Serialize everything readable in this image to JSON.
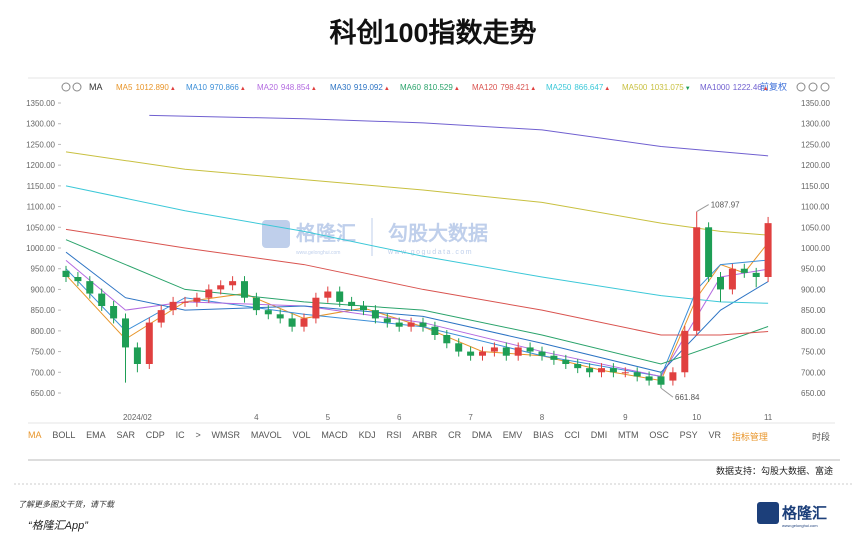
{
  "title": "科创100指数走势",
  "toolbar": {
    "mode": "MA",
    "adjust": "前复权"
  },
  "chart_data": {
    "type": "candlestick",
    "categories": [
      null,
      null,
      null,
      null,
      null,
      null,
      "2024/02",
      null,
      null,
      null,
      null,
      null,
      null,
      null,
      null,
      null,
      "4",
      null,
      null,
      null,
      null,
      null,
      "5",
      null,
      null,
      null,
      null,
      null,
      "6",
      null,
      null,
      null,
      null,
      null,
      "7",
      null,
      null,
      null,
      null,
      null,
      "8",
      null,
      null,
      null,
      null,
      null,
      null,
      "9",
      null,
      null,
      null,
      null,
      null,
      "10",
      null,
      null,
      null,
      null,
      null,
      "11"
    ],
    "open": [
      945,
      930,
      920,
      890,
      860,
      830,
      760,
      720,
      820,
      850,
      870,
      870,
      880,
      900,
      910,
      920,
      880,
      850,
      840,
      830,
      810,
      830,
      880,
      895,
      870,
      860,
      850,
      830,
      820,
      810,
      820,
      810,
      790,
      770,
      750,
      740,
      750,
      760,
      740,
      760,
      750,
      740,
      730,
      720,
      710,
      700,
      710,
      700,
      700,
      690,
      690,
      680,
      700,
      800,
      1050,
      930,
      900,
      950,
      940,
      930
    ],
    "high": [
      957,
      942,
      932,
      902,
      872,
      842,
      772,
      832,
      862,
      882,
      882,
      892,
      912,
      922,
      932,
      932,
      892,
      862,
      852,
      842,
      842,
      892,
      907,
      907,
      882,
      872,
      862,
      842,
      832,
      832,
      832,
      822,
      802,
      782,
      762,
      762,
      772,
      772,
      772,
      772,
      762,
      752,
      742,
      732,
      722,
      722,
      722,
      712,
      712,
      702,
      702,
      712,
      812,
      1087.97,
      1062,
      942,
      962,
      962,
      952,
      1075
    ],
    "low": [
      918,
      908,
      878,
      848,
      818,
      675,
      700,
      708,
      808,
      838,
      858,
      858,
      868,
      888,
      898,
      868,
      838,
      828,
      818,
      798,
      798,
      818,
      868,
      858,
      848,
      838,
      818,
      808,
      798,
      798,
      798,
      778,
      758,
      738,
      728,
      728,
      738,
      728,
      728,
      738,
      728,
      718,
      708,
      698,
      688,
      688,
      688,
      688,
      678,
      668,
      661.84,
      668,
      688,
      788,
      918,
      870,
      888,
      928,
      905,
      918
    ],
    "close": [
      930,
      920,
      890,
      860,
      830,
      760,
      720,
      820,
      850,
      870,
      870,
      880,
      900,
      910,
      920,
      880,
      850,
      840,
      830,
      810,
      830,
      880,
      895,
      870,
      860,
      850,
      830,
      820,
      810,
      820,
      810,
      790,
      770,
      750,
      740,
      750,
      760,
      740,
      760,
      750,
      740,
      730,
      720,
      710,
      700,
      710,
      700,
      700,
      690,
      680,
      670,
      700,
      800,
      1050,
      930,
      900,
      950,
      940,
      930,
      1060
    ],
    "up_color": "#e0403f",
    "down_color": "#1e9e55",
    "series": [
      {
        "name": "MA5",
        "value_label": "1012.890",
        "trend": "▲",
        "color": "#e8952a",
        "x": [
          0,
          5,
          10,
          15,
          20,
          25,
          30,
          35,
          40,
          45,
          50,
          53,
          55,
          57,
          59
        ],
        "values": [
          935,
          780,
          870,
          890,
          830,
          855,
          810,
          750,
          740,
          705,
          680,
          880,
          960,
          940,
          1012.89
        ]
      },
      {
        "name": "MA10",
        "value_label": "970.866",
        "trend": "▲",
        "color": "#3c8fd8",
        "x": [
          0,
          5,
          10,
          20,
          30,
          40,
          50,
          53,
          55,
          59
        ],
        "values": [
          950,
          800,
          880,
          840,
          810,
          740,
          690,
          900,
          960,
          970.866
        ]
      },
      {
        "name": "MA20",
        "value_label": "948.854",
        "trend": "▲",
        "color": "#b36be0",
        "x": [
          0,
          5,
          10,
          20,
          30,
          40,
          50,
          55,
          59
        ],
        "values": [
          970,
          850,
          870,
          860,
          820,
          750,
          690,
          930,
          948.854
        ]
      },
      {
        "name": "MA30",
        "value_label": "919.092",
        "trend": "▲",
        "color": "#2d74c4",
        "x": [
          0,
          5,
          10,
          20,
          30,
          40,
          50,
          55,
          59
        ],
        "values": [
          990,
          880,
          850,
          860,
          835,
          770,
          700,
          850,
          919.092
        ]
      },
      {
        "name": "MA60",
        "value_label": "810.529",
        "trend": "▲",
        "color": "#2aa36b",
        "x": [
          0,
          10,
          20,
          30,
          40,
          50,
          55,
          59
        ],
        "values": [
          1020,
          900,
          870,
          850,
          790,
          720,
          770,
          810.529
        ]
      },
      {
        "name": "MA120",
        "value_label": "798.421",
        "trend": "▲",
        "color": "#d9534f",
        "x": [
          0,
          10,
          20,
          30,
          40,
          50,
          55,
          59
        ],
        "values": [
          1045,
          1000,
          960,
          900,
          850,
          790,
          790,
          798.421
        ]
      },
      {
        "name": "MA250",
        "value_label": "866.647",
        "trend": "▲",
        "color": "#3cc8d8",
        "x": [
          0,
          10,
          20,
          30,
          40,
          50,
          55,
          59
        ],
        "values": [
          1150,
          1090,
          1040,
          980,
          930,
          885,
          870,
          866.647
        ]
      },
      {
        "name": "MA500",
        "value_label": "1031.075",
        "trend": "▼",
        "color": "#c8c040",
        "x": [
          0,
          10,
          20,
          30,
          40,
          50,
          55,
          59
        ],
        "values": [
          1232,
          1190,
          1165,
          1140,
          1110,
          1060,
          1040,
          1031.075
        ]
      },
      {
        "name": "MA1000",
        "value_label": "1222.46",
        "trend": "▲",
        "color": "#7060d0",
        "x": [
          7,
          20,
          30,
          40,
          50,
          59
        ],
        "values": [
          1320,
          1312,
          1302,
          1285,
          1245,
          1222.46
        ]
      }
    ],
    "annotations": [
      {
        "x": 53,
        "value": 1087.97
      },
      {
        "x": 50,
        "value": 661.84
      }
    ],
    "ylim": [
      620,
      1360
    ],
    "yticks": [
      {
        "value": 650,
        "label": "650.00"
      },
      {
        "value": 700,
        "label": "700.00"
      },
      {
        "value": 750,
        "label": "750.00"
      },
      {
        "value": 800,
        "label": "800.00"
      },
      {
        "value": 850,
        "label": "850.00"
      },
      {
        "value": 900,
        "label": "900.00"
      },
      {
        "value": 950,
        "label": "950.00"
      },
      {
        "value": 1000,
        "label": "1000.00"
      },
      {
        "value": 1050,
        "label": "1050.00"
      },
      {
        "value": 1100,
        "label": "1100.00"
      },
      {
        "value": 1150,
        "label": "1150.00"
      },
      {
        "value": 1200,
        "label": "1200.00"
      },
      {
        "value": 1250,
        "label": "1250.00"
      },
      {
        "value": 1300,
        "label": "1300.00"
      },
      {
        "value": 1350,
        "label": "1350.00"
      }
    ]
  },
  "indicators": [
    "MA",
    "BOLL",
    "EMA",
    "SAR",
    "CDP",
    "IC",
    ">",
    "WMSR",
    "MAVOL",
    "VOL",
    "MACD",
    "KDJ",
    "RSI",
    "ARBR",
    "CR",
    "DMA",
    "EMV",
    "BIAS",
    "CCI",
    "DMI",
    "MTM",
    "OSC",
    "PSY",
    "VR",
    "指标管理"
  ],
  "period": "时段",
  "watermark": {
    "brand": "格隆汇",
    "site": "www.gelonghui.com",
    "partner": "勾股大数据",
    "partner_site": "www.gogudata.com"
  },
  "footer": {
    "source": "数据支持：勾股大数据、富途",
    "promo": "了解更多图文干货，请下载",
    "app": "“格隆汇App”",
    "logo": "格隆汇",
    "logo_site": "www.gelonghui.com"
  }
}
